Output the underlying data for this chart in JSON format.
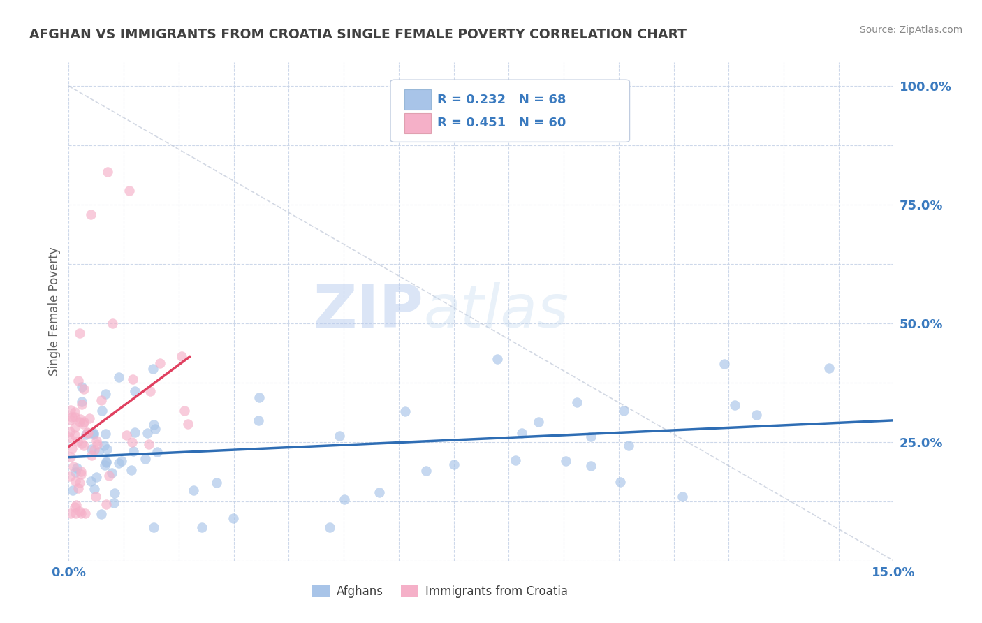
{
  "title": "AFGHAN VS IMMIGRANTS FROM CROATIA SINGLE FEMALE POVERTY CORRELATION CHART",
  "source": "Source: ZipAtlas.com",
  "ylabel": "Single Female Poverty",
  "xlim": [
    0.0,
    0.15
  ],
  "ylim": [
    0.0,
    1.05
  ],
  "color_afghan": "#a8c4e8",
  "color_croatia": "#f5b0c8",
  "color_line_afghan": "#2e6db4",
  "color_line_croatia": "#e04060",
  "color_tick_labels": "#3a7abf",
  "color_title": "#404040",
  "color_source": "#888888",
  "color_ylabel": "#606060",
  "background": "#ffffff",
  "grid_color": "#c8d4e8",
  "diag_color": "#c0c8d8",
  "watermark_zip_color": "#ccd8ee",
  "watermark_atlas_color": "#ccd8f0"
}
